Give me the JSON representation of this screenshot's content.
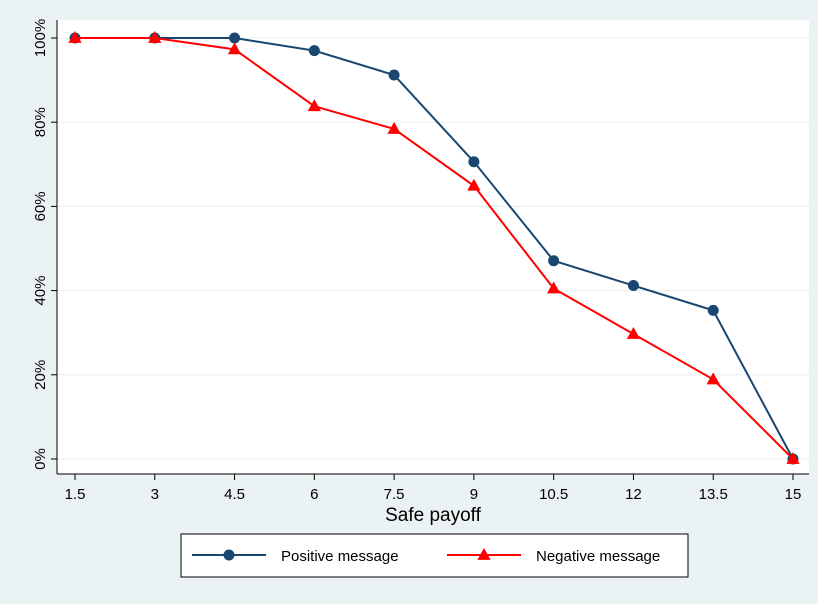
{
  "chart_data": {
    "type": "line",
    "title": "",
    "xlabel": "Safe payoff",
    "ylabel": "",
    "x": [
      1.5,
      3,
      4.5,
      6,
      7.5,
      9,
      10.5,
      12,
      13.5,
      15
    ],
    "x_tick_labels": [
      "1.5",
      "3",
      "4.5",
      "6",
      "7.5",
      "9",
      "10.5",
      "12",
      "13.5",
      "15"
    ],
    "y_ticks": [
      0,
      20,
      40,
      60,
      80,
      100
    ],
    "y_tick_labels": [
      "0%",
      "20%",
      "40%",
      "60%",
      "80%",
      "100%"
    ],
    "xlim": [
      1.5,
      15
    ],
    "ylim": [
      0,
      100
    ],
    "grid": "horizontal",
    "legend_position": "bottom",
    "series": [
      {
        "name": "Positive message",
        "color": "#1a476f",
        "marker": "circle",
        "values": [
          100,
          100,
          100,
          97,
          91.2,
          70.6,
          47.1,
          41.2,
          35.3,
          0
        ]
      },
      {
        "name": "Negative message",
        "color": "#ff0000",
        "marker": "triangle",
        "values": [
          100,
          100,
          97.3,
          83.8,
          78.4,
          64.9,
          40.5,
          29.7,
          18.9,
          0
        ]
      }
    ]
  }
}
